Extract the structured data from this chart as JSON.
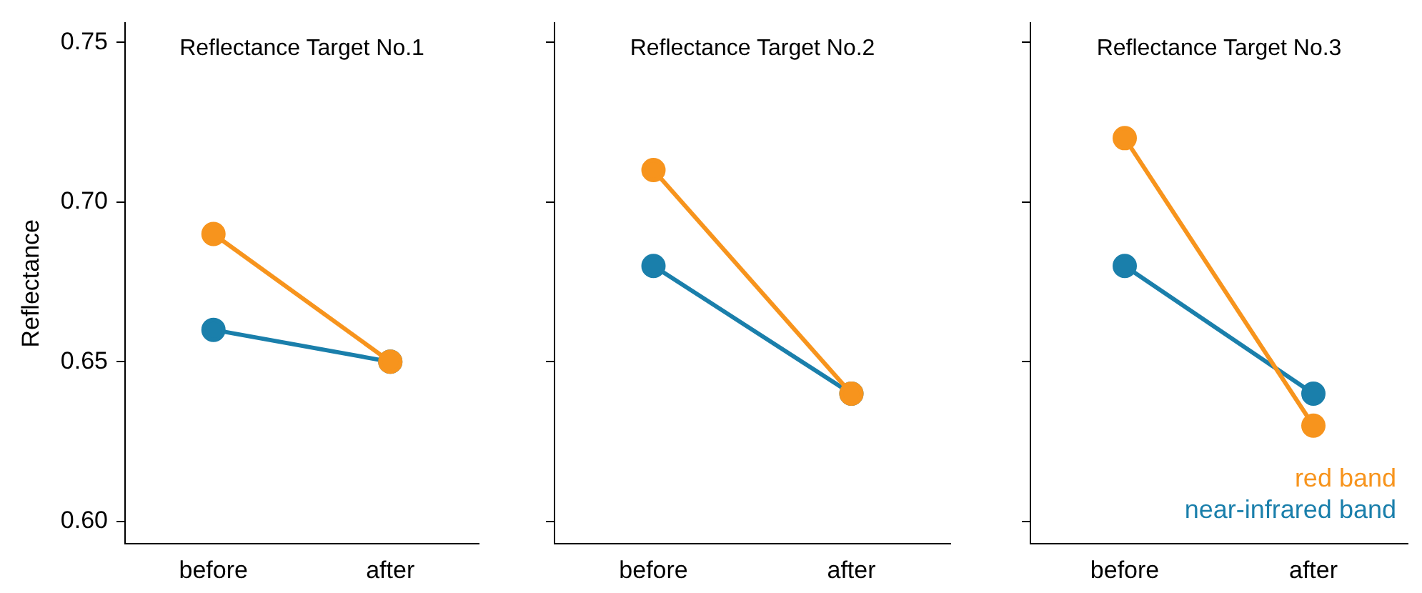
{
  "chart_data": [
    {
      "type": "line",
      "title": "Reflectance Target No.1",
      "ylabel": "Reflectance",
      "categories": [
        "before",
        "after"
      ],
      "ylim": [
        0.593,
        0.756
      ],
      "yticks": [
        {
          "value": 0.6,
          "label": "0.60"
        },
        {
          "value": 0.65,
          "label": "0.65"
        },
        {
          "value": 0.7,
          "label": "0.70"
        },
        {
          "value": 0.75,
          "label": "0.75"
        }
      ],
      "grid": false,
      "marker": "circle",
      "line_style": "solid",
      "series": [
        {
          "color": "#f7941d",
          "values": [
            0.69,
            0.65
          ]
        },
        {
          "color": "#1a7fab",
          "values": [
            0.66,
            0.65
          ]
        }
      ]
    },
    {
      "type": "line",
      "title": "Reflectance Target No.2",
      "categories": [
        "before",
        "after"
      ],
      "ylim": [
        0.593,
        0.756
      ],
      "yticks": [
        {
          "value": 0.6,
          "label": null
        },
        {
          "value": 0.65,
          "label": null
        },
        {
          "value": 0.7,
          "label": null
        },
        {
          "value": 0.75,
          "label": null
        }
      ],
      "tick_labels": "x",
      "grid": false,
      "marker": "circle",
      "line_style": "solid",
      "series": [
        {
          "color": "#f7941d",
          "values": [
            0.71,
            0.64
          ]
        },
        {
          "color": "#1a7fab",
          "values": [
            0.68,
            0.64
          ]
        }
      ]
    },
    {
      "type": "line",
      "title": "Reflectance Target No.3",
      "categories": [
        "before",
        "after"
      ],
      "ylim": [
        0.593,
        0.756
      ],
      "yticks": [
        {
          "value": 0.6,
          "label": null
        },
        {
          "value": 0.65,
          "label": null
        },
        {
          "value": 0.7,
          "label": null
        },
        {
          "value": 0.75,
          "label": null
        }
      ],
      "tick_labels": "x",
      "grid": false,
      "marker": "circle",
      "line_style": "solid",
      "legend": "bottom right",
      "series": [
        {
          "name": "red band",
          "color": "#f7941d",
          "values": [
            0.72,
            0.63
          ]
        },
        {
          "name": "near-infrared band",
          "color": "#1a7fab",
          "values": [
            0.68,
            0.64
          ]
        }
      ]
    }
  ]
}
